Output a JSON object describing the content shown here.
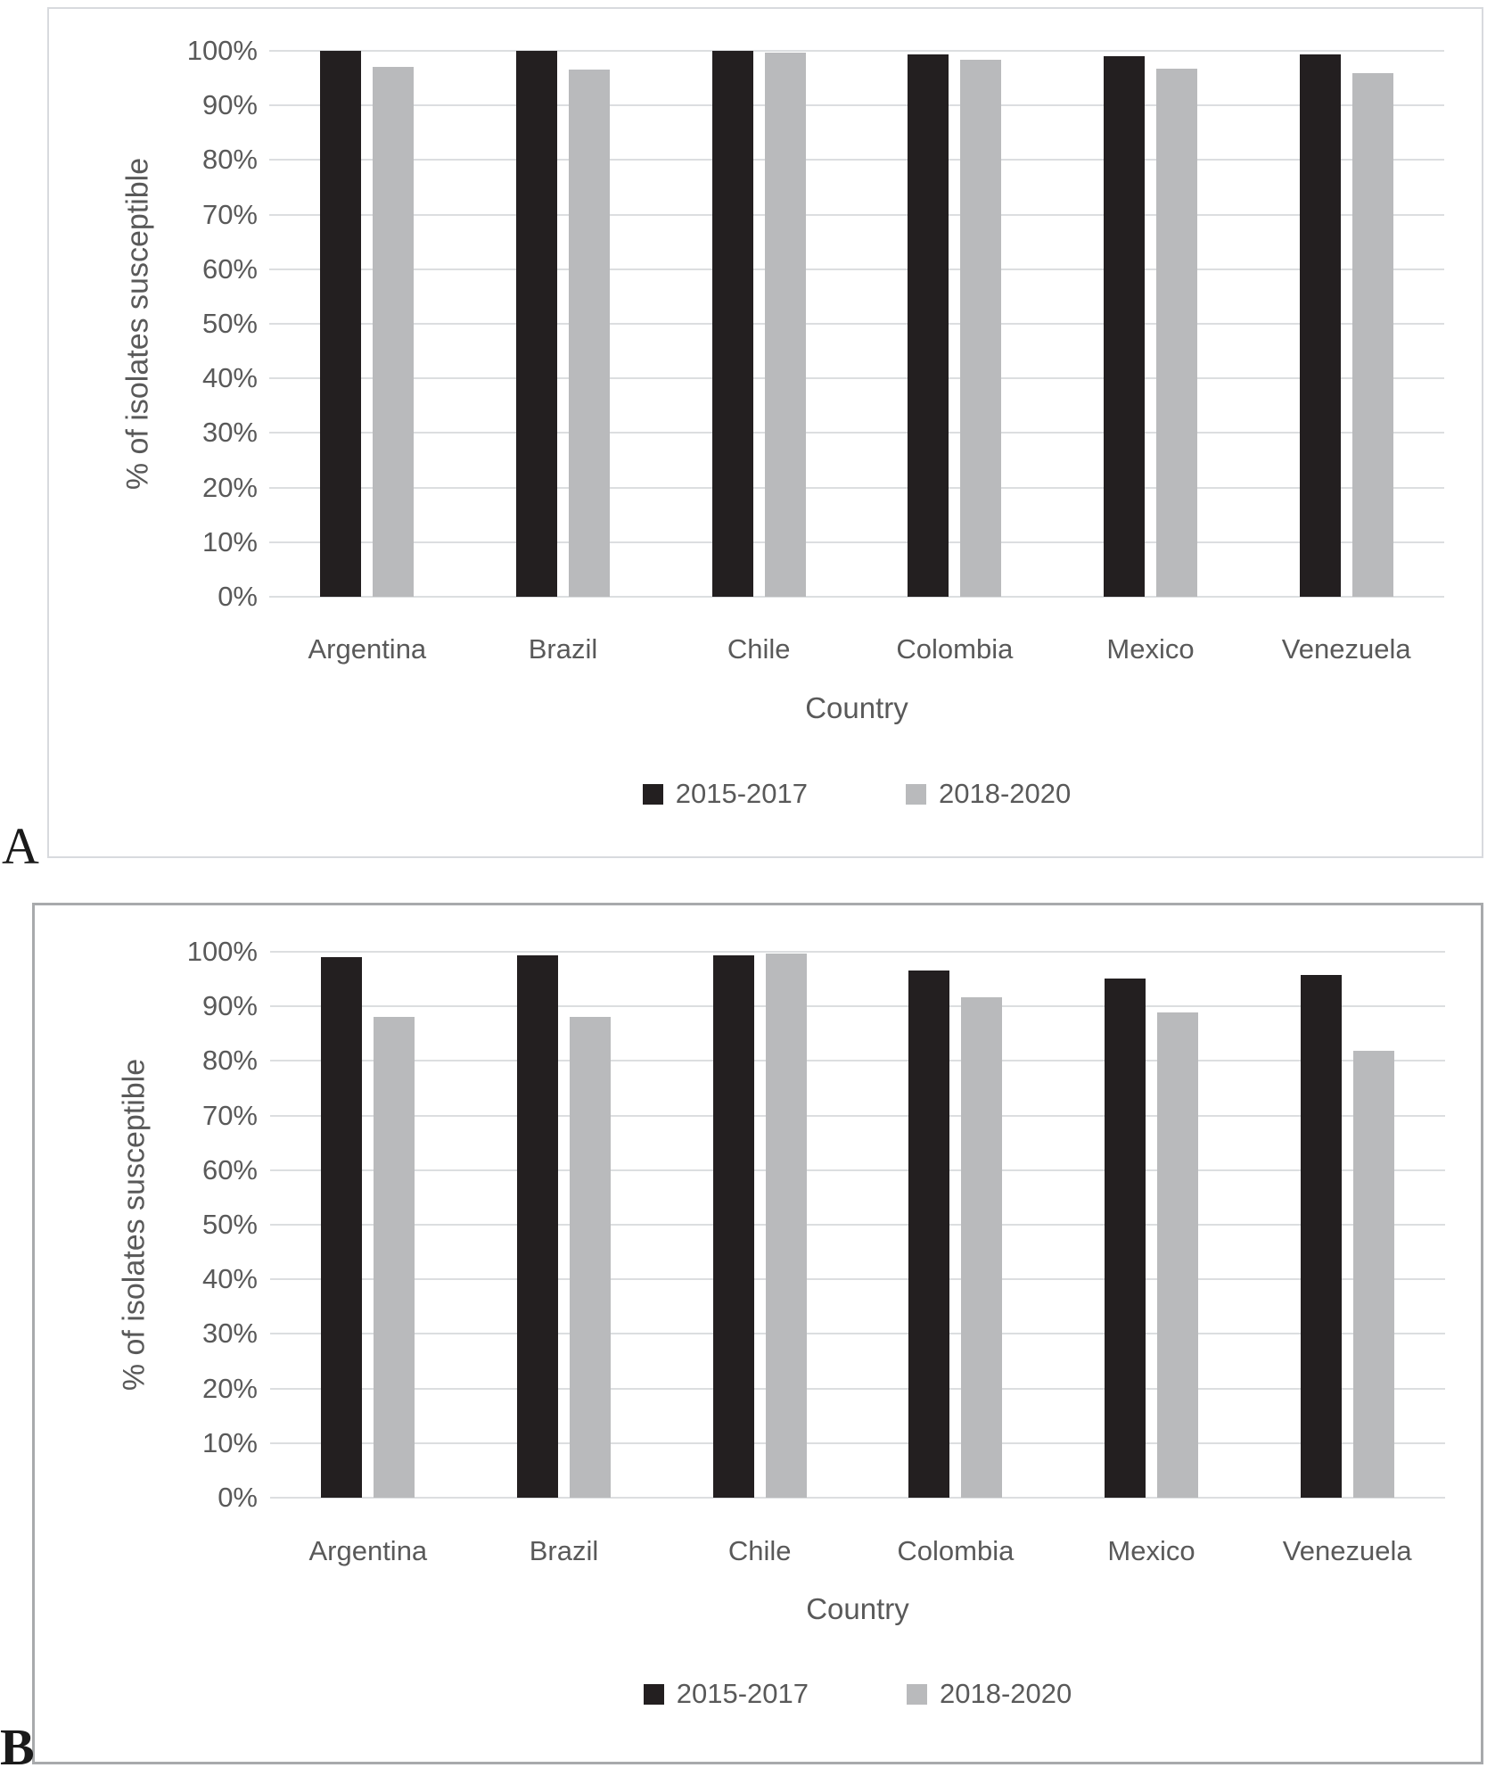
{
  "figure": {
    "panel_labels": [
      "A",
      "B"
    ]
  },
  "chart_data": [
    {
      "panel": "A",
      "type": "bar",
      "title": "",
      "xlabel": "Country",
      "ylabel": "% of isolates susceptible",
      "ylim": [
        0,
        100
      ],
      "grid": true,
      "legend_position": "bottom",
      "categories": [
        "Argentina",
        "Brazil",
        "Chile",
        "Colombia",
        "Mexico",
        "Venezuela"
      ],
      "series": [
        {
          "name": "2015-2017",
          "color": "#231f20",
          "values": [
            100,
            100,
            100,
            99.3,
            99.0,
            99.4
          ]
        },
        {
          "name": "2018-2020",
          "color": "#b9babc",
          "values": [
            97.0,
            96.5,
            99.7,
            98.4,
            96.7,
            95.9
          ]
        }
      ],
      "y_ticks": [
        {
          "label": "100%",
          "value": 100
        },
        {
          "label": "90%",
          "value": 90
        },
        {
          "label": "80%",
          "value": 80
        },
        {
          "label": "70%",
          "value": 70
        },
        {
          "label": "60%",
          "value": 60
        },
        {
          "label": "50%",
          "value": 50
        },
        {
          "label": "40%",
          "value": 40
        },
        {
          "label": "30%",
          "value": 30
        },
        {
          "label": "20%",
          "value": 20
        },
        {
          "label": "10%",
          "value": 10
        },
        {
          "label": "0%",
          "value": 0
        }
      ]
    },
    {
      "panel": "B",
      "type": "bar",
      "title": "",
      "xlabel": "Country",
      "ylabel": "% of isolates susceptible",
      "ylim": [
        0,
        100
      ],
      "grid": true,
      "legend_position": "bottom",
      "categories": [
        "Argentina",
        "Brazil",
        "Chile",
        "Colombia",
        "Mexico",
        "Venezuela"
      ],
      "series": [
        {
          "name": "2015-2017",
          "color": "#231f20",
          "values": [
            99.1,
            99.3,
            99.3,
            96.6,
            95.1,
            95.7
          ]
        },
        {
          "name": "2018-2020",
          "color": "#b9babc",
          "values": [
            88.1,
            88.1,
            99.6,
            91.6,
            88.9,
            81.8
          ]
        }
      ],
      "y_ticks": [
        {
          "label": "100%",
          "value": 100
        },
        {
          "label": "90%",
          "value": 90
        },
        {
          "label": "80%",
          "value": 80
        },
        {
          "label": "70%",
          "value": 70
        },
        {
          "label": "60%",
          "value": 60
        },
        {
          "label": "50%",
          "value": 50
        },
        {
          "label": "40%",
          "value": 40
        },
        {
          "label": "30%",
          "value": 30
        },
        {
          "label": "20%",
          "value": 20
        },
        {
          "label": "10%",
          "value": 10
        },
        {
          "label": "0%",
          "value": 0
        }
      ]
    }
  ]
}
